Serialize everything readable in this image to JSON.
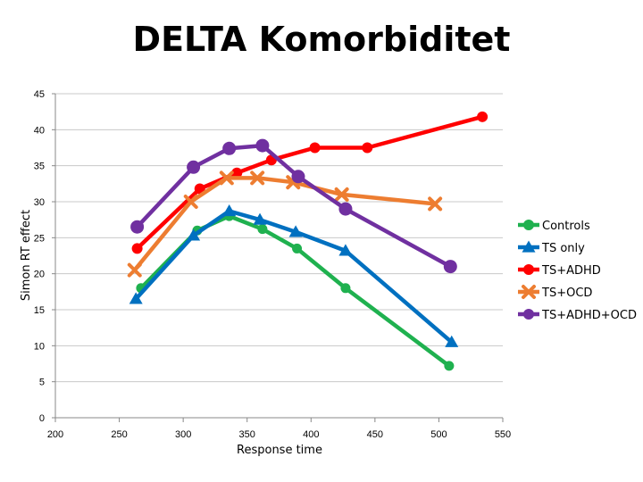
{
  "chart_data": {
    "type": "line",
    "title": "DELTA Komorbiditet",
    "xlabel": "Response time",
    "ylabel": "Simon RT effect",
    "xlim": [
      200,
      550
    ],
    "ylim": [
      0,
      45
    ],
    "xticks": [
      200,
      250,
      300,
      350,
      400,
      450,
      500,
      550
    ],
    "yticks": [
      0,
      5,
      10,
      15,
      20,
      25,
      30,
      35,
      40,
      45
    ],
    "grid": "horizontal",
    "legend": "right",
    "series": [
      {
        "name": "Controls",
        "color": "#1fb14f",
        "marker": "circle",
        "points": [
          [
            267,
            18
          ],
          [
            311,
            26
          ],
          [
            336,
            28
          ],
          [
            362,
            26.2
          ],
          [
            389,
            23.5
          ],
          [
            427,
            18
          ],
          [
            508,
            7.2
          ]
        ]
      },
      {
        "name": "TS only",
        "color": "#0070c0",
        "marker": "triangle",
        "points": [
          [
            263,
            16.5
          ],
          [
            308,
            25.3
          ],
          [
            336,
            28.7
          ],
          [
            360,
            27.5
          ],
          [
            388,
            25.8
          ],
          [
            427,
            23.2
          ],
          [
            510,
            10.5
          ]
        ]
      },
      {
        "name": "TS+ADHD",
        "color": "#ff0000",
        "marker": "circle",
        "points": [
          [
            264,
            23.5
          ],
          [
            313,
            31.8
          ],
          [
            342,
            34
          ],
          [
            369,
            35.8
          ],
          [
            403,
            37.5
          ],
          [
            444,
            37.5
          ],
          [
            534,
            41.8
          ]
        ]
      },
      {
        "name": "TS+OCD",
        "color": "#ed7d31",
        "marker": "x",
        "points": [
          [
            262,
            20.5
          ],
          [
            306,
            30
          ],
          [
            334,
            33.3
          ],
          [
            358,
            33.3
          ],
          [
            386,
            32.7
          ],
          [
            424,
            31
          ],
          [
            497,
            29.7
          ]
        ]
      },
      {
        "name": "TS+ADHD+OCD",
        "color": "#7030a0",
        "marker": "circle",
        "points": [
          [
            264,
            26.5
          ],
          [
            308,
            34.8
          ],
          [
            336,
            37.4
          ],
          [
            362,
            37.8
          ],
          [
            390,
            33.5
          ],
          [
            427,
            29
          ],
          [
            509,
            21
          ]
        ]
      }
    ]
  }
}
